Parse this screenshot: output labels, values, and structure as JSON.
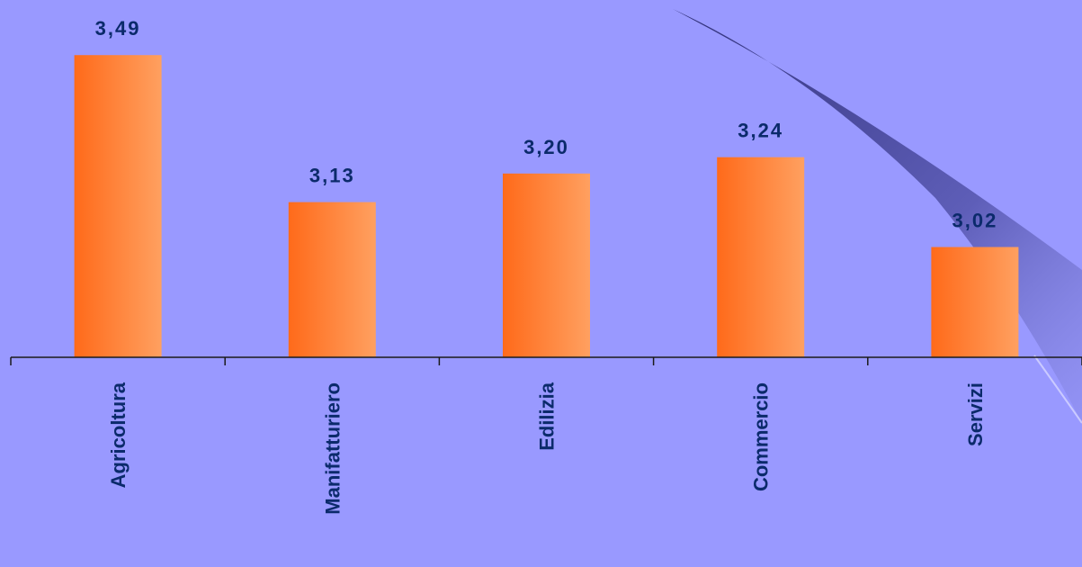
{
  "colors": {
    "background": "#9999ff",
    "bar_dark": "#ff6a1a",
    "bar_light": "#ffa060",
    "label_text": "#0b2a6b",
    "axis": "#1a1a1a",
    "swoosh": "#3a3a8a"
  },
  "chart_data": {
    "type": "bar",
    "categories": [
      "Agricoltura",
      "Manifatturiero",
      "Edilizia",
      "Commercio",
      "Servizi"
    ],
    "values": [
      3.49,
      3.13,
      3.2,
      3.24,
      3.02
    ],
    "value_labels": [
      "3,49",
      "3,13",
      "3,20",
      "3,24",
      "3,02"
    ],
    "title": "",
    "xlabel": "",
    "ylabel": "",
    "ylim": [
      2.75,
      3.55
    ],
    "grid": false,
    "legend": "none"
  }
}
